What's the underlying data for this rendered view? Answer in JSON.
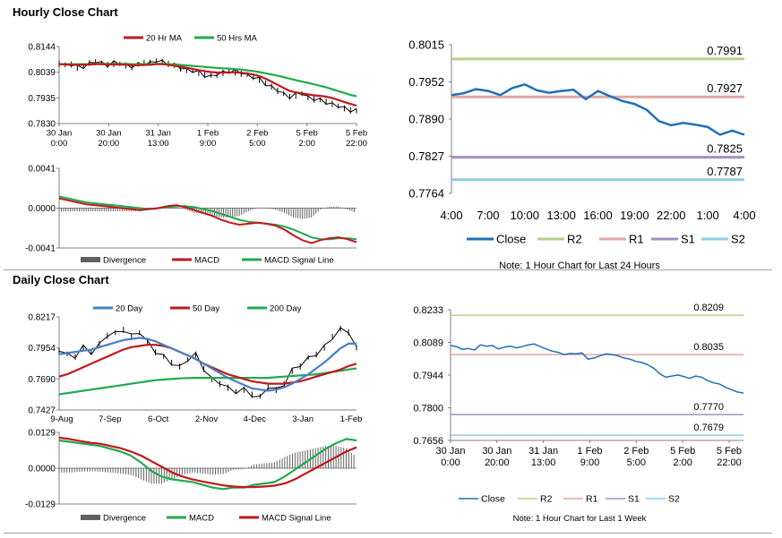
{
  "sections": {
    "hourly_title": "Hourly Close Chart",
    "daily_title": "Daily Close Chart"
  },
  "colors": {
    "close": "#1f6fb5",
    "ma_short": "#c0181c",
    "ma_long": "#22a94f",
    "r2": "#b5cf8a",
    "r1": "#e3a6a6",
    "s1": "#a48fc1",
    "s2": "#8fcde3",
    "divergence": "#606060",
    "ma_blue": "#4a7fc1",
    "price": "#000000"
  },
  "chart_data": [
    {
      "id": "hourly_price",
      "type": "line",
      "ylim": [
        0.783,
        0.8144
      ],
      "yticks": [
        "0.8144",
        "0.8039",
        "0.7935",
        "0.7830"
      ],
      "xlabels": [
        [
          "30 Jan",
          "0:00"
        ],
        [
          "30 Jan",
          "20:00"
        ],
        [
          "31 Jan",
          "13:00"
        ],
        [
          "1 Feb",
          "9:00"
        ],
        [
          "2 Feb",
          "5:00"
        ],
        [
          "5 Feb",
          "2:00"
        ],
        [
          "5 Feb",
          "22:00"
        ]
      ],
      "legend": [
        "20 Hr MA",
        "50 Hrs MA"
      ],
      "price": [
        0.8075,
        0.8068,
        0.8072,
        0.806,
        0.8065,
        0.8078,
        0.8082,
        0.8076,
        0.807,
        0.8075,
        0.8072,
        0.8068,
        0.8063,
        0.807,
        0.8078,
        0.808,
        0.8085,
        0.8082,
        0.8075,
        0.8065,
        0.8055,
        0.805,
        0.8045,
        0.8038,
        0.803,
        0.8025,
        0.803,
        0.8038,
        0.8043,
        0.804,
        0.8035,
        0.8028,
        0.802,
        0.801,
        0.7995,
        0.7982,
        0.7965,
        0.795,
        0.794,
        0.7945,
        0.795,
        0.7938,
        0.793,
        0.7925,
        0.792,
        0.7912,
        0.79,
        0.7893,
        0.7885,
        0.788
      ],
      "ma20": [
        0.8072,
        0.8071,
        0.807,
        0.8069,
        0.807,
        0.8071,
        0.8072,
        0.8072,
        0.8071,
        0.8071,
        0.8071,
        0.807,
        0.8068,
        0.8068,
        0.8069,
        0.807,
        0.8072,
        0.8072,
        0.807,
        0.8066,
        0.8062,
        0.8057,
        0.8053,
        0.8048,
        0.8044,
        0.804,
        0.8038,
        0.8038,
        0.8039,
        0.8039,
        0.8037,
        0.8034,
        0.803,
        0.8023,
        0.8013,
        0.8001,
        0.7988,
        0.7975,
        0.7963,
        0.7957,
        0.7953,
        0.7949,
        0.7945,
        0.7943,
        0.794,
        0.7934,
        0.7926,
        0.7918,
        0.791,
        0.7903
      ],
      "ma50": [
        0.8072,
        0.8072,
        0.8072,
        0.8072,
        0.8072,
        0.8072,
        0.8073,
        0.8073,
        0.8073,
        0.8073,
        0.8073,
        0.8073,
        0.8072,
        0.8072,
        0.8072,
        0.8072,
        0.8073,
        0.8073,
        0.8072,
        0.8071,
        0.8069,
        0.8067,
        0.8065,
        0.8063,
        0.8061,
        0.8059,
        0.8057,
        0.8055,
        0.8054,
        0.8052,
        0.805,
        0.8047,
        0.8044,
        0.804,
        0.8035,
        0.803,
        0.8025,
        0.8019,
        0.8013,
        0.8007,
        0.8001,
        0.7996,
        0.799,
        0.7984,
        0.7978,
        0.797,
        0.7962,
        0.7955,
        0.7947,
        0.7941
      ]
    },
    {
      "id": "hourly_macd",
      "type": "line",
      "ylim": [
        -0.0041,
        0.0041
      ],
      "yticks": [
        "0.0041",
        "0.0000",
        "-0.0041"
      ],
      "legend": [
        "Divergence",
        "MACD",
        "MACD Signal Line"
      ],
      "macd": [
        0.001,
        0.0008,
        0.0006,
        0.0004,
        0.0003,
        0.0002,
        0.0001,
        0.0,
        -0.0001,
        -0.0002,
        -0.0001,
        0.0,
        0.0002,
        0.0003,
        0.0001,
        -0.0002,
        -0.0005,
        -0.0008,
        -0.0012,
        -0.0015,
        -0.0017,
        -0.0016,
        -0.0015,
        -0.0016,
        -0.0018,
        -0.0022,
        -0.0028,
        -0.0033,
        -0.0036,
        -0.0033,
        -0.0031,
        -0.003,
        -0.0032,
        -0.0035
      ],
      "signal": [
        0.0012,
        0.001,
        0.0008,
        0.0006,
        0.0005,
        0.0004,
        0.0003,
        0.0002,
        0.0001,
        0.0,
        -0.0001,
        0.0,
        0.0001,
        0.0002,
        0.0002,
        0.0001,
        -0.0001,
        -0.0003,
        -0.0006,
        -0.0009,
        -0.0012,
        -0.0014,
        -0.0015,
        -0.0016,
        -0.0017,
        -0.0019,
        -0.0022,
        -0.0026,
        -0.003,
        -0.0032,
        -0.0032,
        -0.0031,
        -0.0031,
        -0.0032
      ]
    },
    {
      "id": "hourly_close_24h",
      "type": "line",
      "ylim": [
        0.7764,
        0.8015
      ],
      "yticks": [
        "0.8015",
        "0.7952",
        "0.7890",
        "0.7827",
        "0.7764"
      ],
      "xticks": [
        "4:00",
        "7:00",
        "10:00",
        "13:00",
        "16:00",
        "19:00",
        "22:00",
        "1:00",
        "4:00"
      ],
      "close": [
        0.793,
        0.7933,
        0.794,
        0.7937,
        0.793,
        0.7942,
        0.7948,
        0.7938,
        0.7934,
        0.7937,
        0.7939,
        0.7923,
        0.7937,
        0.7928,
        0.792,
        0.7915,
        0.7905,
        0.7886,
        0.7879,
        0.7883,
        0.788,
        0.7876,
        0.7863,
        0.787,
        0.7863
      ],
      "levels": [
        {
          "name": "R2",
          "value": 0.7991,
          "label": "0.7991"
        },
        {
          "name": "R1",
          "value": 0.7927,
          "label": "0.7927"
        },
        {
          "name": "S1",
          "value": 0.7825,
          "label": "0.7825"
        },
        {
          "name": "S2",
          "value": 0.7787,
          "label": "0.7787"
        }
      ],
      "legend": [
        "Close",
        "R2",
        "R1",
        "S1",
        "S2"
      ],
      "note": "Note: 1 Hour Chart for Last 24 Hours"
    },
    {
      "id": "daily_price",
      "type": "line",
      "ylim": [
        0.7427,
        0.8217
      ],
      "yticks": [
        "0.8217",
        "0.7954",
        "0.7690",
        "0.7427"
      ],
      "xticks": [
        "9-Aug",
        "7-Sep",
        "6-Oct",
        "2-Nov",
        "4-Dec",
        "3-Jan",
        "1-Feb"
      ],
      "legend": [
        "20 Day",
        "50 Day",
        "200 Day"
      ],
      "price": [
        0.793,
        0.79,
        0.788,
        0.796,
        0.792,
        0.799,
        0.806,
        0.808,
        0.811,
        0.805,
        0.808,
        0.801,
        0.792,
        0.788,
        0.783,
        0.78,
        0.785,
        0.79,
        0.778,
        0.768,
        0.765,
        0.762,
        0.758,
        0.76,
        0.756,
        0.754,
        0.762,
        0.76,
        0.765,
        0.776,
        0.78,
        0.787,
        0.79,
        0.796,
        0.805,
        0.812,
        0.809,
        0.795
      ],
      "ma20": [
        0.79,
        0.791,
        0.792,
        0.793,
        0.794,
        0.796,
        0.798,
        0.8,
        0.802,
        0.803,
        0.804,
        0.803,
        0.801,
        0.798,
        0.795,
        0.792,
        0.789,
        0.786,
        0.782,
        0.778,
        0.774,
        0.77,
        0.767,
        0.764,
        0.761,
        0.76,
        0.759,
        0.76,
        0.762,
        0.765,
        0.769,
        0.773,
        0.778,
        0.783,
        0.789,
        0.795,
        0.799,
        0.799
      ],
      "ma50": [
        0.771,
        0.773,
        0.776,
        0.779,
        0.782,
        0.785,
        0.788,
        0.791,
        0.794,
        0.796,
        0.797,
        0.798,
        0.798,
        0.797,
        0.795,
        0.792,
        0.789,
        0.786,
        0.782,
        0.779,
        0.776,
        0.773,
        0.771,
        0.769,
        0.767,
        0.766,
        0.765,
        0.765,
        0.765,
        0.766,
        0.767,
        0.769,
        0.771,
        0.773,
        0.775,
        0.777,
        0.78,
        0.782
      ],
      "ma200": [
        0.756,
        0.757,
        0.758,
        0.759,
        0.76,
        0.761,
        0.762,
        0.763,
        0.764,
        0.765,
        0.766,
        0.767,
        0.768,
        0.7685,
        0.769,
        0.7695,
        0.7698,
        0.77,
        0.77,
        0.77,
        0.77,
        0.77,
        0.77,
        0.77,
        0.77,
        0.77,
        0.77,
        0.7705,
        0.771,
        0.7715,
        0.772,
        0.7725,
        0.773,
        0.774,
        0.775,
        0.776,
        0.777,
        0.778
      ]
    },
    {
      "id": "daily_macd",
      "type": "line",
      "ylim": [
        -0.0129,
        0.0129
      ],
      "yticks": [
        "0.0129",
        "0.0000",
        "-0.0129"
      ],
      "legend": [
        "Divergence",
        "MACD",
        "MACD Signal Line"
      ],
      "macd": [
        0.01,
        0.0095,
        0.009,
        0.0085,
        0.008,
        0.007,
        0.006,
        0.0045,
        0.002,
        -0.001,
        -0.003,
        -0.004,
        -0.0045,
        -0.005,
        -0.006,
        -0.007,
        -0.0075,
        -0.007,
        -0.007,
        -0.006,
        -0.0055,
        -0.005,
        -0.003,
        -0.0005,
        0.002,
        0.0045,
        0.007,
        0.009,
        0.0105,
        0.01
      ],
      "signal": [
        0.011,
        0.0105,
        0.0098,
        0.0092,
        0.0088,
        0.008,
        0.0072,
        0.006,
        0.0045,
        0.0025,
        0.0005,
        -0.0015,
        -0.003,
        -0.004,
        -0.0048,
        -0.0055,
        -0.0062,
        -0.0066,
        -0.0068,
        -0.0068,
        -0.0066,
        -0.0063,
        -0.0055,
        -0.004,
        -0.002,
        0.0,
        0.002,
        0.004,
        0.006,
        0.0075
      ]
    },
    {
      "id": "weekly_close",
      "type": "line",
      "ylim": [
        0.7656,
        0.8233
      ],
      "yticks": [
        "0.8233",
        "0.8089",
        "0.7944",
        "0.7800",
        "0.7656"
      ],
      "xlabels": [
        [
          "30 Jan",
          "0:00"
        ],
        [
          "30 Jan",
          "20:00"
        ],
        [
          "31 Jan",
          "13:00"
        ],
        [
          "1 Feb",
          "9:00"
        ],
        [
          "2 Feb",
          "5:00"
        ],
        [
          "5 Feb",
          "2:00"
        ],
        [
          "5 Feb",
          "22:00"
        ]
      ],
      "close": [
        0.8075,
        0.807,
        0.8058,
        0.8062,
        0.8055,
        0.8078,
        0.8072,
        0.8075,
        0.806,
        0.8068,
        0.8072,
        0.8065,
        0.807,
        0.8078,
        0.8082,
        0.807,
        0.806,
        0.805,
        0.8045,
        0.8035,
        0.804,
        0.8038,
        0.8042,
        0.8015,
        0.802,
        0.803,
        0.8038,
        0.8035,
        0.803,
        0.802,
        0.8015,
        0.8005,
        0.8,
        0.799,
        0.7975,
        0.795,
        0.7935,
        0.794,
        0.7945,
        0.7938,
        0.793,
        0.794,
        0.7935,
        0.792,
        0.791,
        0.7905,
        0.789,
        0.788,
        0.787,
        0.7865
      ],
      "levels": [
        {
          "name": "R2",
          "value": 0.8209,
          "label": "0.8209"
        },
        {
          "name": "R1",
          "value": 0.8035,
          "label": "0.8035"
        },
        {
          "name": "S1",
          "value": 0.777,
          "label": "0.7770"
        },
        {
          "name": "S2",
          "value": 0.7679,
          "label": "0.7679"
        }
      ],
      "legend": [
        "Close",
        "R2",
        "R1",
        "S1",
        "S2"
      ],
      "note": "Note: 1 Hour Chart for Last 1 Week"
    }
  ]
}
